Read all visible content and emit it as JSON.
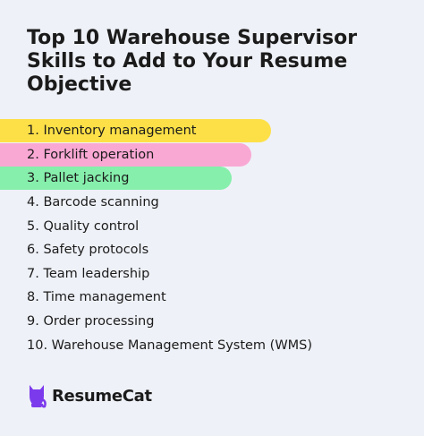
{
  "title": "Top 10 Warehouse Supervisor Skills to Add to Your Resume Objective",
  "colors": {
    "background": "#eef1f7",
    "highlight_1": "#fde047",
    "highlight_2": "#f9a8d4",
    "highlight_3": "#86efac",
    "logo": "#7c3aed"
  },
  "skills": [
    {
      "label": "1. Inventory management"
    },
    {
      "label": "2. Forklift operation"
    },
    {
      "label": "3. Pallet jacking"
    },
    {
      "label": "4. Barcode scanning"
    },
    {
      "label": "5. Quality control"
    },
    {
      "label": "6. Safety protocols"
    },
    {
      "label": "7. Team leadership"
    },
    {
      "label": "8. Time management"
    },
    {
      "label": "9. Order processing"
    },
    {
      "label": "10. Warehouse Management System (WMS)"
    }
  ],
  "brand": {
    "name": "ResumeCat",
    "icon": "cat-icon"
  }
}
